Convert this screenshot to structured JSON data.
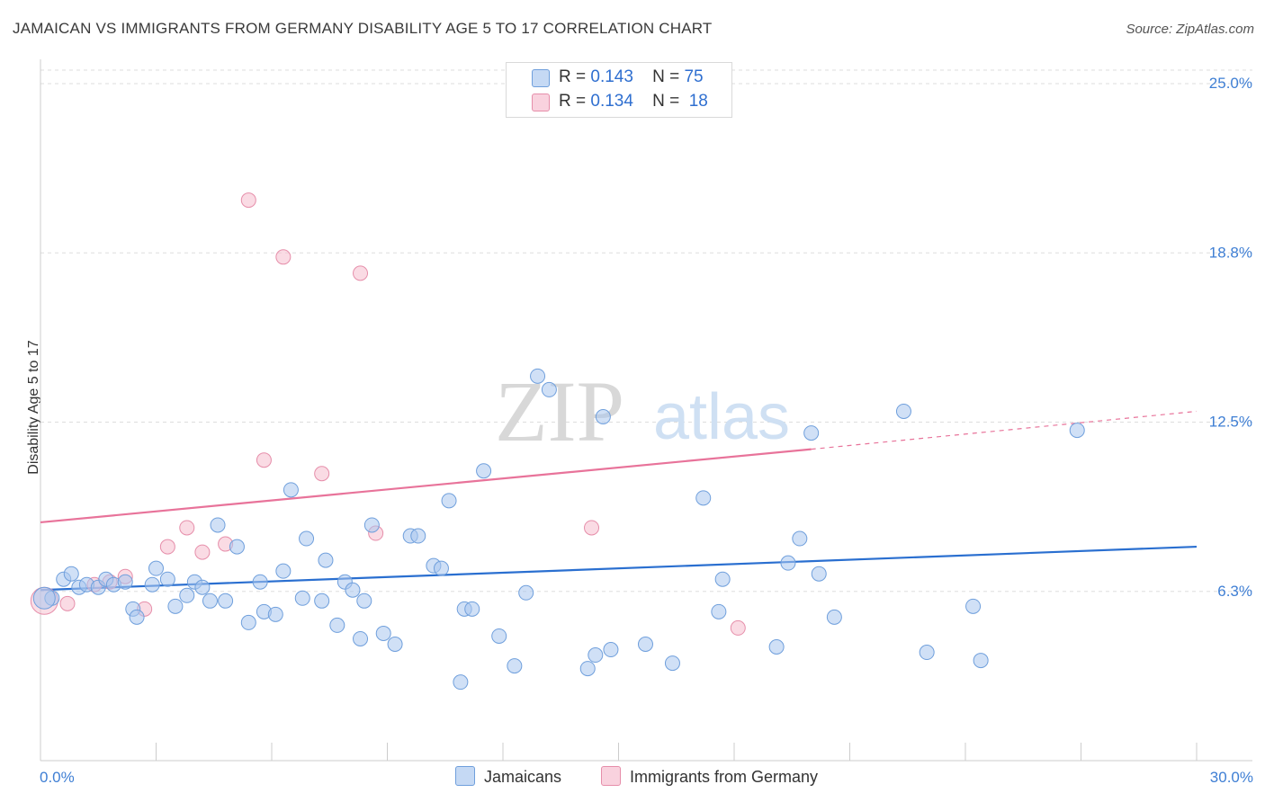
{
  "header": {
    "title": "JAMAICAN VS IMMIGRANTS FROM GERMANY DISABILITY AGE 5 TO 17 CORRELATION CHART",
    "source_label": "Source: ZipAtlas.com"
  },
  "watermark": {
    "zip": "ZIP",
    "atlas": "atlas"
  },
  "legend": {
    "items": [
      {
        "name": "Jamaicans",
        "r_label": "R =",
        "r_value": "0.143",
        "n_label": "N =",
        "n_value": "75",
        "fill": "#a9c6ee",
        "stroke": "#6f9fdc"
      },
      {
        "name": "Immigrants from Germany",
        "r_label": "R =",
        "r_value": "0.134",
        "n_label": "N =",
        "n_value": "18",
        "fill": "#f6c3d2",
        "stroke": "#e68eaa"
      }
    ]
  },
  "colors": {
    "blue_fill": "#a9c6ee",
    "blue_stroke": "#6f9fdc",
    "blue_line": "#2a6fd0",
    "pink_fill": "#f6c3d2",
    "pink_stroke": "#e68eaa",
    "pink_line": "#e8739a",
    "tick_label": "#3f7fd4",
    "grid": "#dddddd"
  },
  "chart_data": {
    "type": "scatter",
    "title": "JAMAICAN VS IMMIGRANTS FROM GERMANY DISABILITY AGE 5 TO 17 CORRELATION CHART",
    "xlabel": "",
    "ylabel": "Disability Age 5 to 17",
    "xlim": [
      0,
      30
    ],
    "ylim": [
      0,
      25.5
    ],
    "x_tick_labels": [
      {
        "value": 0,
        "label": "0.0%"
      },
      {
        "value": 30,
        "label": "30.0%"
      }
    ],
    "x_minor_ticks": [
      0,
      3,
      6,
      9,
      12,
      15,
      18,
      21,
      24,
      27,
      30
    ],
    "y_ticks": [
      {
        "value": 6.25,
        "label": "6.3%"
      },
      {
        "value": 12.5,
        "label": "12.5%"
      },
      {
        "value": 18.75,
        "label": "18.8%"
      },
      {
        "value": 25,
        "label": "25.0%"
      }
    ],
    "series": [
      {
        "name": "Jamaicans",
        "points": [
          [
            0.3,
            6.0
          ],
          [
            0.6,
            6.7
          ],
          [
            0.8,
            6.9
          ],
          [
            1.0,
            6.4
          ],
          [
            1.2,
            6.5
          ],
          [
            1.5,
            6.4
          ],
          [
            1.7,
            6.7
          ],
          [
            1.9,
            6.5
          ],
          [
            2.2,
            6.6
          ],
          [
            2.4,
            5.6
          ],
          [
            2.5,
            5.3
          ],
          [
            2.9,
            6.5
          ],
          [
            3.0,
            7.1
          ],
          [
            3.3,
            6.7
          ],
          [
            3.5,
            5.7
          ],
          [
            3.8,
            6.1
          ],
          [
            4.0,
            6.6
          ],
          [
            4.2,
            6.4
          ],
          [
            4.4,
            5.9
          ],
          [
            4.6,
            8.7
          ],
          [
            4.8,
            5.9
          ],
          [
            5.1,
            7.9
          ],
          [
            5.4,
            5.1
          ],
          [
            5.7,
            6.6
          ],
          [
            5.8,
            5.5
          ],
          [
            6.1,
            5.4
          ],
          [
            6.3,
            7.0
          ],
          [
            6.5,
            10.0
          ],
          [
            6.8,
            6.0
          ],
          [
            6.9,
            8.2
          ],
          [
            7.3,
            5.9
          ],
          [
            7.4,
            7.4
          ],
          [
            7.7,
            5.0
          ],
          [
            7.9,
            6.6
          ],
          [
            8.1,
            6.3
          ],
          [
            8.3,
            4.5
          ],
          [
            8.4,
            5.9
          ],
          [
            8.6,
            8.7
          ],
          [
            8.9,
            4.7
          ],
          [
            9.2,
            4.3
          ],
          [
            9.6,
            8.3
          ],
          [
            9.8,
            8.3
          ],
          [
            10.2,
            7.2
          ],
          [
            10.4,
            7.1
          ],
          [
            10.6,
            9.6
          ],
          [
            10.9,
            2.9
          ],
          [
            11.0,
            5.6
          ],
          [
            11.2,
            5.6
          ],
          [
            11.5,
            10.7
          ],
          [
            11.9,
            4.6
          ],
          [
            12.3,
            3.5
          ],
          [
            12.6,
            6.2
          ],
          [
            12.9,
            14.2
          ],
          [
            13.2,
            13.7
          ],
          [
            14.2,
            3.4
          ],
          [
            14.4,
            3.9
          ],
          [
            14.6,
            12.7
          ],
          [
            14.8,
            4.1
          ],
          [
            15.7,
            4.3
          ],
          [
            16.4,
            3.6
          ],
          [
            17.2,
            9.7
          ],
          [
            17.6,
            5.5
          ],
          [
            17.7,
            6.7
          ],
          [
            19.1,
            4.2
          ],
          [
            19.4,
            7.3
          ],
          [
            19.7,
            8.2
          ],
          [
            20.0,
            12.1
          ],
          [
            20.2,
            6.9
          ],
          [
            20.6,
            5.3
          ],
          [
            22.4,
            12.9
          ],
          [
            23.0,
            4.0
          ],
          [
            24.2,
            5.7
          ],
          [
            24.4,
            3.7
          ],
          [
            26.9,
            12.2
          ],
          [
            0.1,
            6.0
          ]
        ],
        "trend": {
          "x0": 0,
          "y0": 6.3,
          "x1": 30,
          "y1": 7.9
        }
      },
      {
        "name": "Immigrants from Germany",
        "points": [
          [
            0.1,
            5.9
          ],
          [
            0.7,
            5.8
          ],
          [
            1.4,
            6.5
          ],
          [
            1.8,
            6.6
          ],
          [
            2.2,
            6.8
          ],
          [
            2.7,
            5.6
          ],
          [
            3.3,
            7.9
          ],
          [
            3.8,
            8.6
          ],
          [
            4.2,
            7.7
          ],
          [
            4.8,
            8.0
          ],
          [
            5.4,
            20.7
          ],
          [
            5.8,
            11.1
          ],
          [
            6.3,
            18.6
          ],
          [
            7.3,
            10.6
          ],
          [
            8.3,
            18.0
          ],
          [
            8.7,
            8.4
          ],
          [
            14.3,
            8.6
          ],
          [
            18.1,
            4.9
          ]
        ],
        "trend": {
          "x0": 0,
          "y0": 8.8,
          "x1": 20.0,
          "y1": 11.5
        },
        "trend_dashed": {
          "x0": 20.0,
          "y0": 11.5,
          "x1": 30,
          "y1": 12.9
        }
      }
    ]
  }
}
